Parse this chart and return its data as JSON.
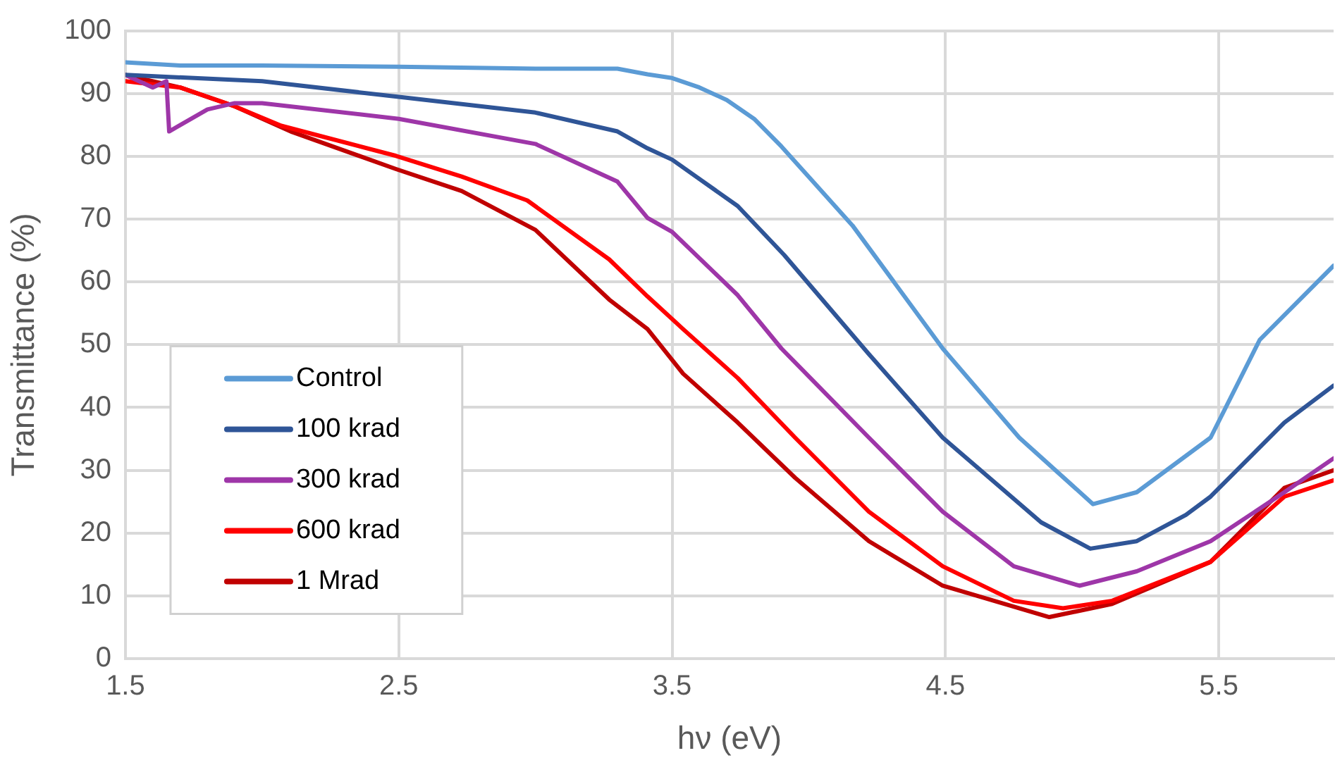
{
  "chart_data": {
    "type": "line",
    "xlabel": "hν (eV)",
    "ylabel": "Transmittance (%)",
    "xlim": [
      1.5,
      5.92
    ],
    "ylim": [
      0,
      100
    ],
    "xticks": [
      1.5,
      2.5,
      3.5,
      4.5,
      5.5
    ],
    "yticks": [
      0,
      10,
      20,
      30,
      40,
      50,
      60,
      70,
      80,
      90,
      100
    ],
    "grid": true,
    "legend": "left",
    "marker": "none",
    "line_style": "solid",
    "series": [
      {
        "name": "Control",
        "color": "#5b9bd5",
        "x": [
          1.5,
          1.7,
          2.0,
          2.5,
          3.0,
          3.3,
          3.41,
          3.5,
          3.6,
          3.7,
          3.8,
          3.9,
          4.16,
          4.49,
          4.77,
          5.04,
          5.2,
          5.47,
          5.65,
          5.92
        ],
        "values": [
          95,
          94.5,
          94.5,
          94.3,
          94,
          94,
          93.1,
          92.5,
          91,
          89,
          86,
          81.6,
          69,
          49.4,
          35.2,
          24.6,
          26.5,
          35.2,
          50.8,
          62.6
        ]
      },
      {
        "name": "100 krad",
        "color": "#2f5597",
        "x": [
          1.5,
          2.0,
          2.5,
          3.0,
          3.3,
          3.41,
          3.5,
          3.74,
          3.91,
          4.22,
          4.49,
          4.85,
          5.03,
          5.2,
          5.38,
          5.47,
          5.74,
          5.92
        ],
        "values": [
          93,
          92,
          89.5,
          87,
          84,
          81.3,
          79.5,
          72.1,
          64.3,
          48.5,
          35.2,
          21.7,
          17.5,
          18.7,
          22.9,
          25.8,
          37.6,
          43.5
        ]
      },
      {
        "name": "300 krad",
        "color": "#9e36a8",
        "x": [
          1.5,
          1.6,
          1.65,
          1.66,
          1.7,
          1.8,
          1.9,
          2.0,
          2.5,
          3.0,
          3.3,
          3.41,
          3.5,
          3.74,
          3.9,
          4.22,
          4.49,
          4.75,
          4.99,
          5.2,
          5.47,
          5.74,
          5.92
        ],
        "values": [
          93,
          91,
          92,
          84,
          85,
          87.5,
          88.5,
          88.5,
          86,
          82,
          76,
          70.2,
          68,
          57.9,
          49.4,
          35.2,
          23.4,
          14.7,
          11.6,
          13.9,
          18.7,
          26.5,
          31.9
        ]
      },
      {
        "name": "600 krad",
        "color": "#ff0000",
        "x": [
          1.5,
          1.7,
          1.9,
          2.07,
          2.49,
          2.73,
          2.97,
          3.27,
          3.41,
          3.54,
          3.74,
          3.95,
          4.22,
          4.49,
          4.75,
          4.93,
          5.11,
          5.47,
          5.74,
          5.92
        ],
        "values": [
          92,
          91,
          88,
          84.9,
          80.1,
          76.8,
          73,
          63.6,
          57.7,
          52.5,
          44.7,
          35.2,
          23.4,
          14.7,
          9.2,
          8,
          9.2,
          15.4,
          25.8,
          28.4
        ]
      },
      {
        "name": "1 Mrad",
        "color": "#c00000",
        "x": [
          1.5,
          1.7,
          1.9,
          2.11,
          2.49,
          2.73,
          3.0,
          3.27,
          3.41,
          3.54,
          3.74,
          3.95,
          4.22,
          4.49,
          4.88,
          5.11,
          5.47,
          5.74,
          5.92
        ],
        "values": [
          93,
          91,
          88,
          83.9,
          78,
          74.5,
          68.3,
          57.2,
          52.5,
          45.4,
          37.6,
          28.8,
          18.7,
          11.6,
          6.6,
          8.7,
          15.4,
          27.2,
          30
        ]
      }
    ]
  }
}
